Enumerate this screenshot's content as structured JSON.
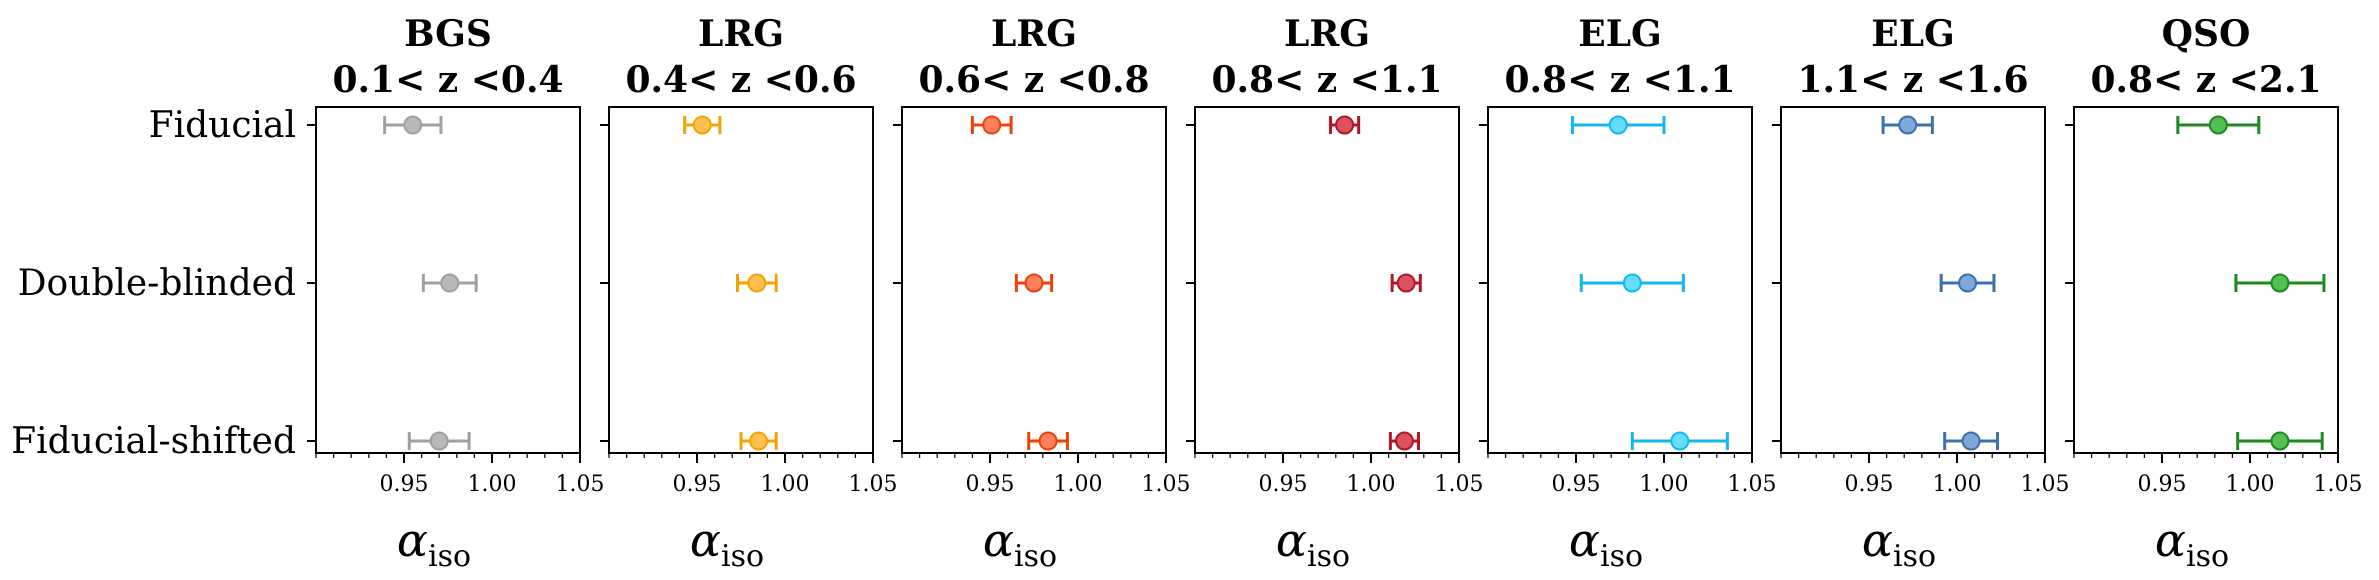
{
  "chart_data": {
    "type": "scatter",
    "rows": [
      "Fiducial",
      "Double-blinded",
      "Fiducial-shifted"
    ],
    "xlim": [
      0.9,
      1.05
    ],
    "xticks": [
      "0.95",
      "1.00",
      "1.05"
    ],
    "xlabel": "α",
    "xlabel_subscript": "iso",
    "panels": [
      {
        "title_line1": "BGS",
        "title_line2": "0.1< z <0.4",
        "color": "#b8b8b8",
        "edge": "#a0a0a0",
        "points": [
          {
            "row": "Fiducial",
            "value": 0.955,
            "err": 0.016
          },
          {
            "row": "Double-blinded",
            "value": 0.976,
            "err": 0.015
          },
          {
            "row": "Fiducial-shifted",
            "value": 0.97,
            "err": 0.017
          }
        ]
      },
      {
        "title_line1": "LRG",
        "title_line2": "0.4< z <0.6",
        "color": "#ffc04d",
        "edge": "#f5a300",
        "points": [
          {
            "row": "Fiducial",
            "value": 0.953,
            "err": 0.01
          },
          {
            "row": "Double-blinded",
            "value": 0.984,
            "err": 0.011
          },
          {
            "row": "Fiducial-shifted",
            "value": 0.985,
            "err": 0.01
          }
        ]
      },
      {
        "title_line1": "LRG",
        "title_line2": "0.6< z <0.8",
        "color": "#ff7f5e",
        "edge": "#f0400a",
        "points": [
          {
            "row": "Fiducial",
            "value": 0.951,
            "err": 0.011
          },
          {
            "row": "Double-blinded",
            "value": 0.975,
            "err": 0.01
          },
          {
            "row": "Fiducial-shifted",
            "value": 0.983,
            "err": 0.011
          }
        ]
      },
      {
        "title_line1": "LRG",
        "title_line2": "0.8< z <1.1",
        "color": "#d9525e",
        "edge": "#b01528",
        "points": [
          {
            "row": "Fiducial",
            "value": 0.985,
            "err": 0.008
          },
          {
            "row": "Double-blinded",
            "value": 1.02,
            "err": 0.008
          },
          {
            "row": "Fiducial-shifted",
            "value": 1.019,
            "err": 0.008
          }
        ]
      },
      {
        "title_line1": "ELG",
        "title_line2": "0.8< z <1.1",
        "color": "#66ddff",
        "edge": "#10b8ef",
        "points": [
          {
            "row": "Fiducial",
            "value": 0.974,
            "err": 0.026
          },
          {
            "row": "Double-blinded",
            "value": 0.982,
            "err": 0.029
          },
          {
            "row": "Fiducial-shifted",
            "value": 1.009,
            "err": 0.027
          }
        ]
      },
      {
        "title_line1": "ELG",
        "title_line2": "1.1< z <1.6",
        "color": "#7fa8d8",
        "edge": "#3a6fb0",
        "points": [
          {
            "row": "Fiducial",
            "value": 0.972,
            "err": 0.014
          },
          {
            "row": "Double-blinded",
            "value": 1.006,
            "err": 0.015
          },
          {
            "row": "Fiducial-shifted",
            "value": 1.008,
            "err": 0.015
          }
        ]
      },
      {
        "title_line1": "QSO",
        "title_line2": "0.8< z <2.1",
        "color": "#52c052",
        "edge": "#1e8a1e",
        "points": [
          {
            "row": "Fiducial",
            "value": 0.982,
            "err": 0.023
          },
          {
            "row": "Double-blinded",
            "value": 1.017,
            "err": 0.025
          },
          {
            "row": "Fiducial-shifted",
            "value": 1.017,
            "err": 0.024
          }
        ]
      }
    ]
  }
}
